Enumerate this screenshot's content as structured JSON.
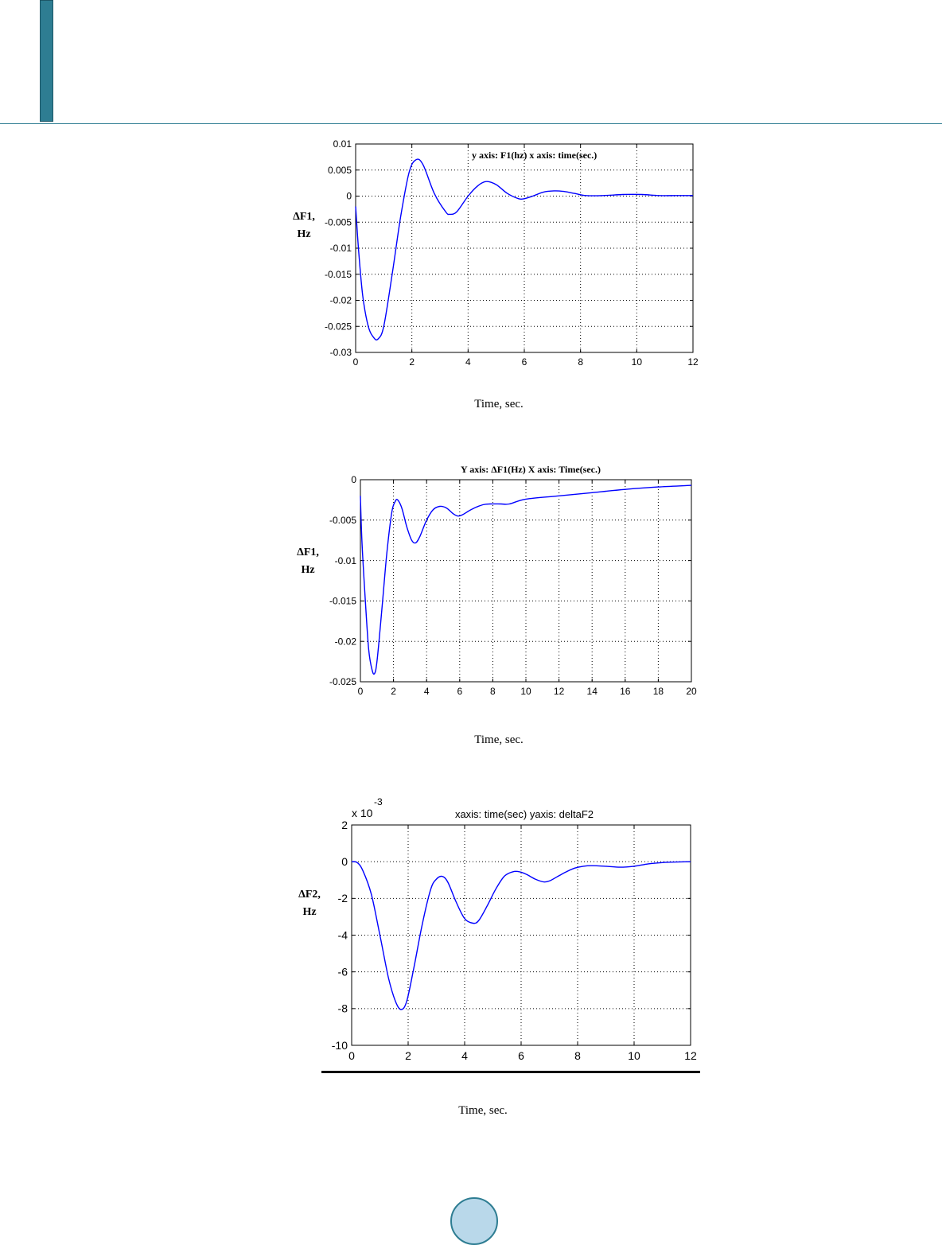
{
  "colors": {
    "header": "#2e7d92",
    "line": "#0000ff",
    "grid": "#000000",
    "page_circle": "#b9d8ea"
  },
  "chart_data": [
    {
      "type": "line",
      "title": "y axis:   F1(hz)    x axis: time(sec.)",
      "ylabel": [
        "ΔF1,",
        "Hz"
      ],
      "xlabel": "Time,  sec.",
      "xlim": [
        0,
        12
      ],
      "ylim": [
        -0.03,
        0.01
      ],
      "xticks": [
        0,
        2,
        4,
        6,
        8,
        10,
        12
      ],
      "yticks": [
        0.01,
        0.005,
        0,
        -0.005,
        -0.01,
        -0.015,
        -0.02,
        -0.025,
        -0.03
      ],
      "ytick_labels": [
        "0.01",
        "0.005",
        "0",
        "-0.005",
        "-0.01",
        "-0.015",
        "-0.02",
        "-0.025",
        "-0.03"
      ],
      "grid": true,
      "series": [
        {
          "x": [
            0,
            0.1,
            0.25,
            0.45,
            0.65,
            0.8,
            1.0,
            1.3,
            1.6,
            1.9,
            2.15,
            2.4,
            2.8,
            3.2,
            3.35,
            3.6,
            4.0,
            4.35,
            4.65,
            5.0,
            5.4,
            5.8,
            6.0,
            6.3,
            6.7,
            7.1,
            7.4,
            7.8,
            8.2,
            8.8,
            9.5,
            10.2,
            10.8,
            11.4,
            12
          ],
          "y": [
            -0.002,
            -0.01,
            -0.019,
            -0.025,
            -0.0272,
            -0.0274,
            -0.025,
            -0.015,
            -0.004,
            0.0045,
            0.007,
            0.006,
            0.0005,
            -0.003,
            -0.0035,
            -0.003,
            0.0,
            0.002,
            0.0028,
            0.0022,
            0.0005,
            -0.0005,
            -0.0005,
            0.0,
            0.0008,
            0.001,
            0.0009,
            0.0005,
            0.0001,
            0.0001,
            0.0003,
            0.0003,
            0.0001,
            0.0001,
            0.0001
          ]
        }
      ]
    },
    {
      "type": "line",
      "title": "Y axis:  ΔF1(Hz)    X axis:  Time(sec.)",
      "ylabel": [
        "ΔF1,",
        "Hz"
      ],
      "xlabel": "Time,  sec.",
      "xlim": [
        0,
        20
      ],
      "ylim": [
        -0.025,
        0
      ],
      "xticks": [
        0,
        2,
        4,
        6,
        8,
        10,
        12,
        14,
        16,
        18,
        20
      ],
      "yticks": [
        0,
        -0.005,
        -0.01,
        -0.015,
        -0.02,
        -0.025
      ],
      "ytick_labels": [
        "0",
        "-0.005",
        "-0.01",
        "-0.015",
        "-0.02",
        "-0.025"
      ],
      "grid": true,
      "series": [
        {
          "x": [
            0,
            0.1,
            0.3,
            0.5,
            0.7,
            0.85,
            1.0,
            1.3,
            1.6,
            1.9,
            2.1,
            2.25,
            2.5,
            2.8,
            3.1,
            3.35,
            3.6,
            4.0,
            4.4,
            4.8,
            5.2,
            5.6,
            5.9,
            6.2,
            6.6,
            7.0,
            7.4,
            7.8,
            8.5,
            9.0,
            10.0,
            12.0,
            14.0,
            16.0,
            18.0,
            20.0
          ],
          "y": [
            -0.002,
            -0.008,
            -0.015,
            -0.021,
            -0.0235,
            -0.024,
            -0.0225,
            -0.016,
            -0.009,
            -0.004,
            -0.0027,
            -0.0025,
            -0.0035,
            -0.0058,
            -0.0075,
            -0.0078,
            -0.007,
            -0.005,
            -0.0037,
            -0.0033,
            -0.0035,
            -0.0042,
            -0.0045,
            -0.0043,
            -0.0038,
            -0.0034,
            -0.0031,
            -0.003,
            -0.003,
            -0.003,
            -0.0024,
            -0.002,
            -0.0016,
            -0.0012,
            -0.0009,
            -0.0007
          ]
        }
      ]
    },
    {
      "type": "line",
      "title": "xaxis: time(sec)  yaxis: deltaF2",
      "scale_label": "x 10",
      "scale_exponent": "-3",
      "ylabel": [
        "ΔF2,",
        "Hz"
      ],
      "xlabel": "Time,  sec.",
      "xlim": [
        0,
        12
      ],
      "ylim": [
        -10,
        2
      ],
      "xticks": [
        0,
        2,
        4,
        6,
        8,
        10,
        12
      ],
      "yticks": [
        2,
        0,
        -2,
        -4,
        -6,
        -8,
        -10
      ],
      "ytick_labels": [
        "2",
        "0",
        "-2",
        "-4",
        "-6",
        "-8",
        "-10"
      ],
      "grid": true,
      "series": [
        {
          "x": [
            0,
            0.2,
            0.4,
            0.7,
            1.0,
            1.3,
            1.55,
            1.75,
            1.95,
            2.2,
            2.5,
            2.8,
            3.0,
            3.2,
            3.4,
            3.7,
            4.0,
            4.3,
            4.5,
            4.8,
            5.1,
            5.4,
            5.7,
            5.95,
            6.2,
            6.5,
            6.8,
            7.0,
            7.3,
            7.6,
            7.9,
            8.2,
            8.5,
            9.0,
            9.5,
            10.0,
            10.5,
            11.0,
            11.5,
            12.0
          ],
          "y": [
            0.0,
            -0.05,
            -0.5,
            -1.8,
            -4.0,
            -6.3,
            -7.6,
            -8.05,
            -7.6,
            -5.8,
            -3.4,
            -1.5,
            -0.95,
            -0.8,
            -1.1,
            -2.2,
            -3.1,
            -3.35,
            -3.2,
            -2.4,
            -1.5,
            -0.8,
            -0.55,
            -0.55,
            -0.7,
            -0.95,
            -1.1,
            -1.05,
            -0.8,
            -0.55,
            -0.35,
            -0.25,
            -0.22,
            -0.25,
            -0.3,
            -0.25,
            -0.12,
            -0.05,
            -0.02,
            0.0
          ]
        }
      ]
    }
  ]
}
